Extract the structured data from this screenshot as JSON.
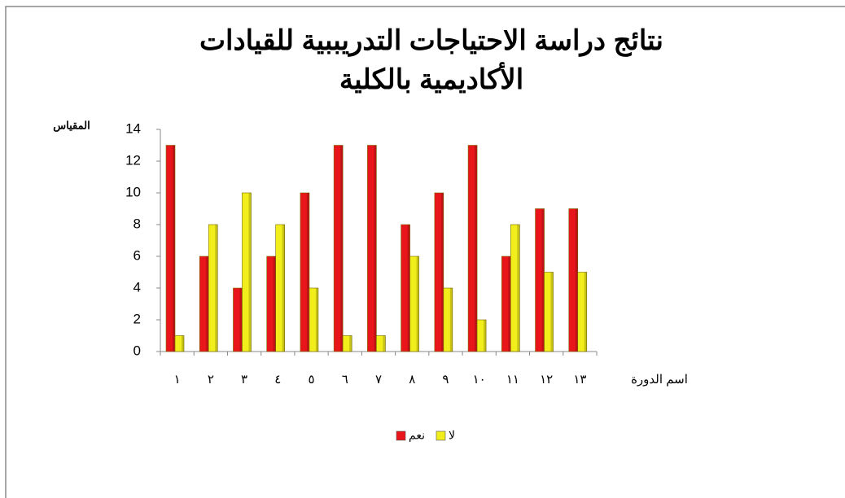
{
  "chart_data": {
    "type": "bar",
    "title": [
      "نتائج دراسة الاحتياجات التدريببية للقيادات",
      "الأكاديمية بالكلية"
    ],
    "y_label": "المقياس",
    "x_label": "اسم الدورة",
    "categories": [
      "١",
      "٢",
      "٣",
      "٤",
      "٥",
      "٦",
      "٧",
      "٨",
      "٩",
      "١٠",
      "١١",
      "١٢",
      "١٣"
    ],
    "series": [
      {
        "name": "نعم",
        "color": "#e8161b",
        "values": [
          13,
          6,
          4,
          6,
          10,
          13,
          13,
          8,
          10,
          13,
          6,
          9,
          9
        ]
      },
      {
        "name": "لا",
        "color": "#f2ee1c",
        "values": [
          1,
          8,
          10,
          8,
          4,
          1,
          1,
          6,
          4,
          2,
          8,
          5,
          5
        ]
      }
    ],
    "ylim": [
      0,
      14
    ],
    "yticks": [
      0,
      2,
      4,
      6,
      8,
      10,
      12,
      14
    ],
    "grid": false,
    "legend": "bottom"
  }
}
